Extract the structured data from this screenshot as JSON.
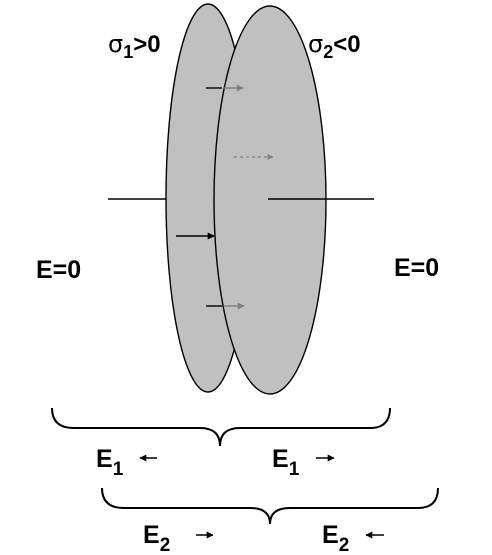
{
  "labels": {
    "sigma1": {
      "symbol": "σ",
      "sub": "1",
      "rel": ">0"
    },
    "sigma2": {
      "symbol": "σ",
      "sub": "2",
      "rel": "<0"
    },
    "field_left": "E=0",
    "field_right": "E=0",
    "e1_left": {
      "base": "E",
      "sub": "1"
    },
    "e1_right": {
      "base": "E",
      "sub": "1"
    },
    "e2_left": {
      "base": "E",
      "sub": "2"
    },
    "e2_right": {
      "base": "E",
      "sub": "2"
    }
  },
  "colors": {
    "plate_fill": "#c0c0c0",
    "stroke": "#000000",
    "hidden_arrow": "#808080"
  }
}
